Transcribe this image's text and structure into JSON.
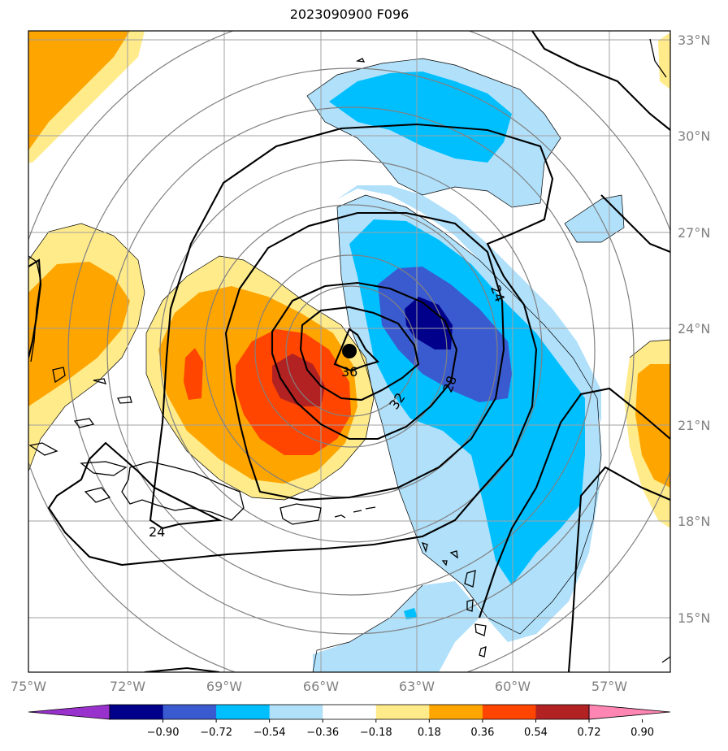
{
  "title": "2023090900 F096",
  "map": {
    "lon_labels": [
      "75°W",
      "72°W",
      "69°W",
      "66°W",
      "63°W",
      "60°W",
      "57°W"
    ],
    "lat_labels": [
      "33°N",
      "30°N",
      "27°N",
      "24°N",
      "21°N",
      "18°N",
      "15°N"
    ],
    "contour_labels": [
      "36",
      "32",
      "28",
      "24",
      "24"
    ],
    "storm_marker": "storm-center"
  },
  "colorbar": {
    "colors": [
      "#9932cc",
      "#00008b",
      "#3a5bd0",
      "#00bfff",
      "#b0e0fa",
      "#ffffff",
      "#ffeb8a",
      "#ffa500",
      "#ff4500",
      "#b22222",
      "#ff85b3"
    ],
    "tick_labels": [
      "−0.90",
      "−0.72",
      "−0.54",
      "−0.36",
      "−0.18",
      "0.18",
      "0.36",
      "0.54",
      "0.72",
      "0.90"
    ]
  }
}
